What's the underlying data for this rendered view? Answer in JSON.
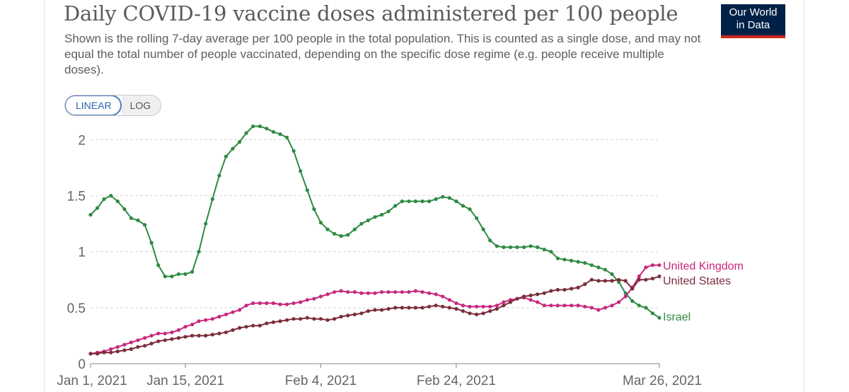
{
  "header": {
    "title": "Daily COVID-19 vaccine doses administered per 100 people",
    "subtitle": "Shown is the rolling 7-day average per 100 people in the total population. This is counted as a single dose, and may not equal the total number of people vaccinated, depending on the specific dose regime (e.g. people receive multiple doses).",
    "logo_line1": "Our World",
    "logo_line2": "in Data"
  },
  "scale_toggle": {
    "linear_label": "LINEAR",
    "log_label": "LOG",
    "selected": "LINEAR"
  },
  "colors": {
    "israel": "#2f8a43",
    "uk": "#c8287d",
    "us": "#7a2d3c",
    "logo_bg": "#002147",
    "logo_bar": "#ce261e"
  },
  "chart_data": {
    "type": "line",
    "title": "Daily COVID-19 vaccine doses administered per 100 people",
    "xlabel": "",
    "ylabel": "",
    "x_start": "Jan 1, 2021",
    "x_end": "Mar 26, 2021",
    "day_count": 85,
    "ylim": [
      0,
      2.3
    ],
    "y_ticks": [
      0,
      0.5,
      1,
      1.5,
      2
    ],
    "y_tick_labels": [
      "0",
      "0.5",
      "1",
      "1.5",
      "2"
    ],
    "x_tick_days": [
      0,
      14,
      34,
      54,
      84
    ],
    "x_tick_labels": [
      "Jan 1, 2021",
      "Jan 15, 2021",
      "Feb 4, 2021",
      "Feb 24, 2021",
      "Mar 26, 2021"
    ],
    "grid": true,
    "legend": "line end labels (right)",
    "series": [
      {
        "name": "Israel",
        "color": "#2f8a43",
        "values": [
          1.33,
          1.39,
          1.47,
          1.5,
          1.45,
          1.38,
          1.3,
          1.28,
          1.24,
          1.08,
          0.88,
          0.78,
          0.78,
          0.8,
          0.8,
          0.82,
          1.0,
          1.25,
          1.47,
          1.68,
          1.85,
          1.92,
          1.98,
          2.06,
          2.12,
          2.12,
          2.1,
          2.07,
          2.05,
          2.02,
          1.9,
          1.72,
          1.55,
          1.38,
          1.26,
          1.2,
          1.16,
          1.14,
          1.15,
          1.2,
          1.25,
          1.28,
          1.31,
          1.33,
          1.36,
          1.41,
          1.45,
          1.45,
          1.45,
          1.45,
          1.45,
          1.47,
          1.49,
          1.48,
          1.45,
          1.41,
          1.38,
          1.3,
          1.2,
          1.1,
          1.05,
          1.04,
          1.04,
          1.04,
          1.04,
          1.05,
          1.04,
          1.02,
          1.0,
          0.94,
          0.93,
          0.92,
          0.91,
          0.9,
          0.88,
          0.86,
          0.84,
          0.8,
          0.73,
          0.63,
          0.56,
          0.52,
          0.5,
          0.45,
          0.41
        ]
      },
      {
        "name": "United Kingdom",
        "color": "#c8287d",
        "values": [
          0.09,
          0.1,
          0.11,
          0.13,
          0.15,
          0.17,
          0.19,
          0.21,
          0.23,
          0.25,
          0.27,
          0.27,
          0.28,
          0.3,
          0.33,
          0.35,
          0.38,
          0.39,
          0.4,
          0.42,
          0.44,
          0.46,
          0.48,
          0.52,
          0.54,
          0.54,
          0.54,
          0.54,
          0.53,
          0.53,
          0.54,
          0.55,
          0.57,
          0.58,
          0.6,
          0.62,
          0.64,
          0.65,
          0.64,
          0.64,
          0.63,
          0.63,
          0.63,
          0.64,
          0.64,
          0.64,
          0.64,
          0.64,
          0.65,
          0.64,
          0.63,
          0.62,
          0.6,
          0.57,
          0.54,
          0.52,
          0.51,
          0.51,
          0.51,
          0.51,
          0.52,
          0.55,
          0.57,
          0.58,
          0.59,
          0.57,
          0.55,
          0.52,
          0.52,
          0.52,
          0.52,
          0.52,
          0.52,
          0.51,
          0.5,
          0.48,
          0.5,
          0.52,
          0.55,
          0.6,
          0.68,
          0.78,
          0.86,
          0.88,
          0.88
        ]
      },
      {
        "name": "United States",
        "color": "#7a2d3c",
        "values": [
          0.09,
          0.09,
          0.1,
          0.1,
          0.11,
          0.12,
          0.13,
          0.15,
          0.16,
          0.18,
          0.2,
          0.21,
          0.22,
          0.23,
          0.24,
          0.25,
          0.25,
          0.25,
          0.26,
          0.27,
          0.28,
          0.3,
          0.32,
          0.33,
          0.34,
          0.34,
          0.36,
          0.37,
          0.38,
          0.39,
          0.4,
          0.4,
          0.41,
          0.4,
          0.4,
          0.39,
          0.4,
          0.42,
          0.43,
          0.44,
          0.45,
          0.47,
          0.48,
          0.48,
          0.49,
          0.5,
          0.5,
          0.5,
          0.5,
          0.5,
          0.51,
          0.52,
          0.51,
          0.5,
          0.49,
          0.47,
          0.45,
          0.44,
          0.45,
          0.47,
          0.49,
          0.52,
          0.55,
          0.58,
          0.6,
          0.61,
          0.62,
          0.63,
          0.65,
          0.66,
          0.66,
          0.67,
          0.68,
          0.71,
          0.75,
          0.74,
          0.74,
          0.74,
          0.75,
          0.74,
          0.67,
          0.75,
          0.75,
          0.76,
          0.78
        ]
      }
    ]
  }
}
